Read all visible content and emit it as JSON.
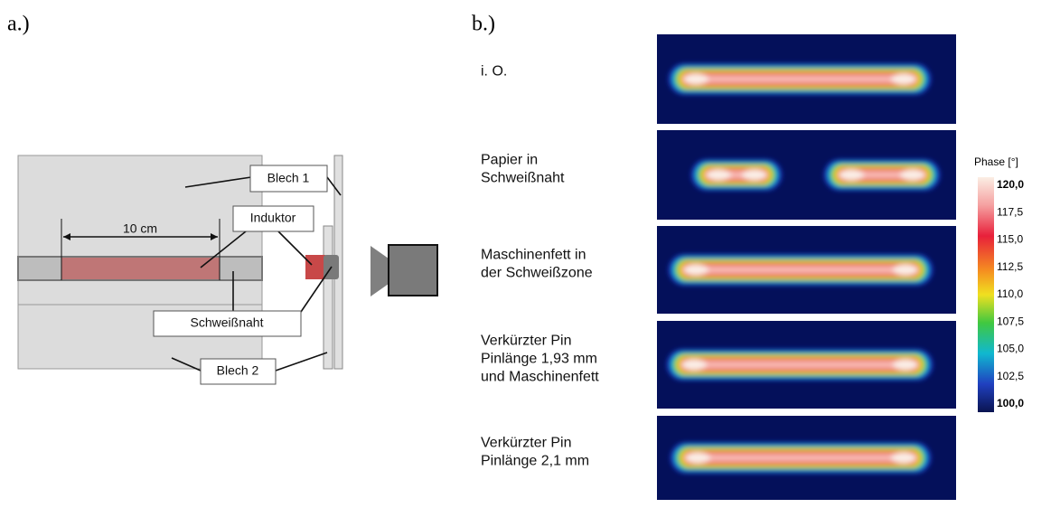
{
  "panel_a": {
    "label": "a.)",
    "callouts": {
      "blech1": "Blech 1",
      "induktor": "Induktor",
      "dimension": "10 cm",
      "schweissnaht": "Schweißnaht",
      "blech2": "Blech 2"
    }
  },
  "panel_b": {
    "label": "b.)",
    "rows": [
      {
        "lines": [
          "i. O."
        ]
      },
      {
        "lines": [
          "Papier in",
          "Schweißnaht"
        ]
      },
      {
        "lines": [
          "Maschinenfett in",
          "der Schweißzone"
        ]
      },
      {
        "lines": [
          "Verkürzter Pin",
          "Pinlänge 1,93 mm",
          "und Maschinenfett"
        ]
      },
      {
        "lines": [
          "Verkürzter Pin",
          "Pinlänge 2,1 mm"
        ]
      }
    ],
    "colorbar": {
      "title": "Phase [°]",
      "ticks": [
        "120,0",
        "117,5",
        "115,0",
        "112,5",
        "110,0",
        "107,5",
        "105,0",
        "102,5",
        "100,0"
      ]
    }
  }
}
